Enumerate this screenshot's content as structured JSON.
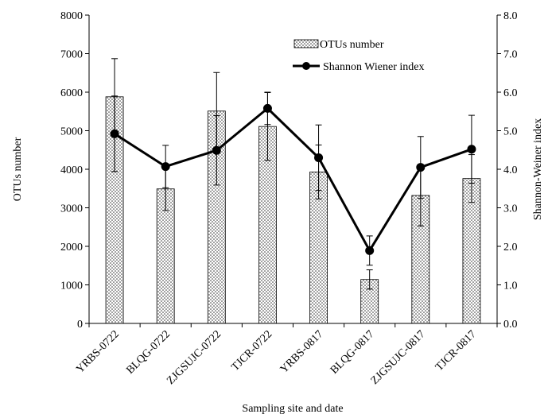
{
  "chart_data": {
    "type": "bar",
    "categories": [
      "YRBS-0722",
      "BLQG-0722",
      "ZJGSUJC-0722",
      "TJCR-0722",
      "YRBS-0817",
      "BLQG-0817",
      "ZJGSUJC-0817",
      "TJCR-0817"
    ],
    "xlabel": "Sampling site and date",
    "ylabel_left": "OTUs number",
    "ylabel_right": "Shannon-Weiner index",
    "ylim_left": [
      0,
      8000
    ],
    "ylim_right": [
      0.0,
      8.0
    ],
    "yticks_left": [
      "0",
      "1000",
      "2000",
      "3000",
      "4000",
      "5000",
      "6000",
      "7000",
      "8000"
    ],
    "yticks_right": [
      "0.0",
      "1.0",
      "2.0",
      "3.0",
      "4.0",
      "5.0",
      "6.0",
      "7.0",
      "8.0"
    ],
    "grid": false,
    "legend_position": "top-right",
    "series": [
      {
        "name": "OTUs number",
        "type": "bar",
        "axis": "left",
        "values": [
          5880,
          3490,
          5510,
          5110,
          3930,
          1140,
          3320,
          3760
        ],
        "errors": [
          990,
          560,
          1000,
          880,
          700,
          250,
          790,
          620
        ]
      },
      {
        "name": "Shannon Wiener index",
        "type": "line",
        "axis": "right",
        "values": [
          4.92,
          4.07,
          4.49,
          5.58,
          4.3,
          1.89,
          4.05,
          4.52
        ],
        "errors": [
          0.98,
          0.55,
          0.9,
          0.42,
          0.85,
          0.38,
          0.8,
          0.88
        ]
      }
    ]
  }
}
